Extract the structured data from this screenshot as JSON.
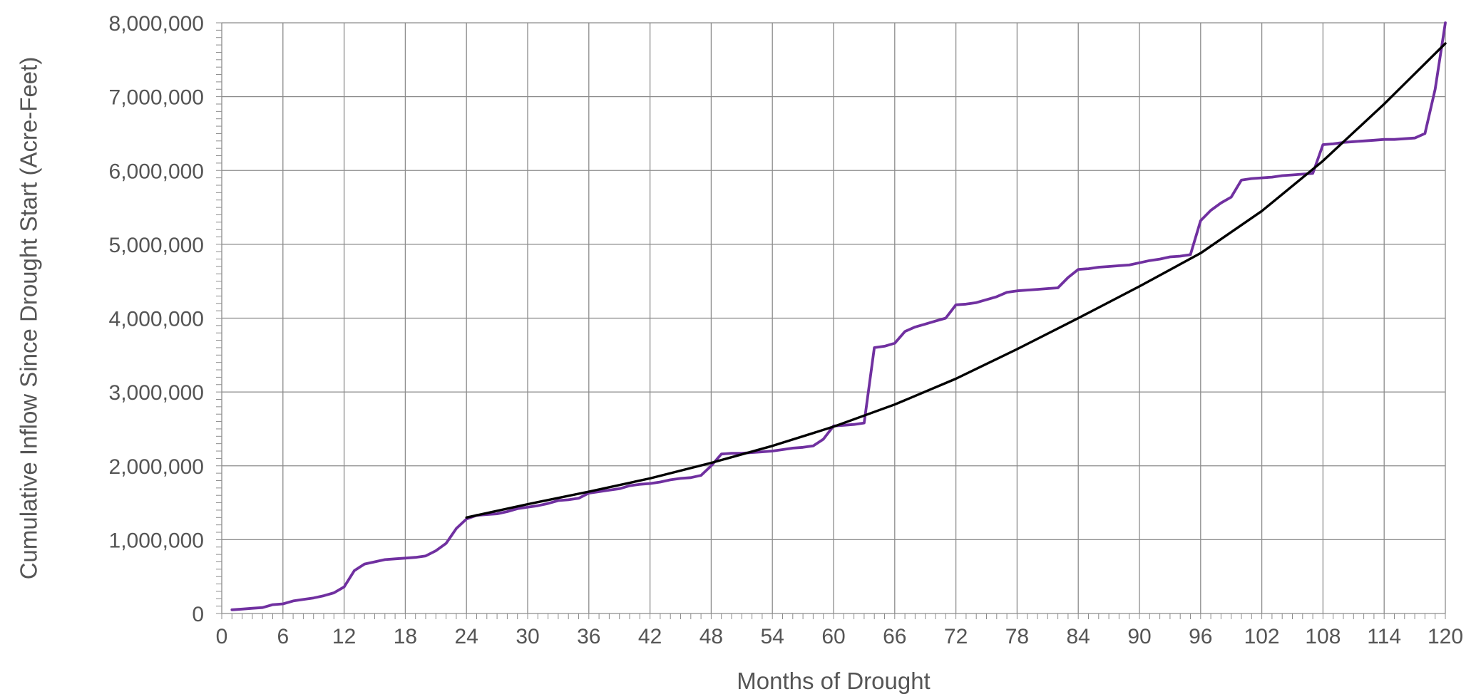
{
  "chart_data": {
    "type": "line",
    "xlabel": "Months of Drought",
    "ylabel": "Cumulative Inflow Since Drought Start (Acre-Feet)",
    "xlim": [
      0,
      120
    ],
    "ylim": [
      0,
      8000000
    ],
    "x_ticks": [
      0,
      6,
      12,
      18,
      24,
      30,
      36,
      42,
      48,
      54,
      60,
      66,
      72,
      78,
      84,
      90,
      96,
      102,
      108,
      114,
      120
    ],
    "y_ticks": [
      0,
      1000000,
      2000000,
      3000000,
      4000000,
      5000000,
      6000000,
      7000000,
      8000000
    ],
    "y_tick_labels": [
      "0",
      "1,000,000",
      "2,000,000",
      "3,000,000",
      "4,000,000",
      "5,000,000",
      "6,000,000",
      "7,000,000",
      "8,000,000"
    ],
    "grid": true,
    "series": [
      {
        "color": "#7030a0",
        "points": [
          [
            1,
            50000
          ],
          [
            2,
            60000
          ],
          [
            3,
            70000
          ],
          [
            4,
            80000
          ],
          [
            5,
            120000
          ],
          [
            6,
            130000
          ],
          [
            7,
            170000
          ],
          [
            8,
            190000
          ],
          [
            9,
            210000
          ],
          [
            10,
            240000
          ],
          [
            11,
            280000
          ],
          [
            12,
            360000
          ],
          [
            13,
            580000
          ],
          [
            14,
            670000
          ],
          [
            15,
            700000
          ],
          [
            16,
            730000
          ],
          [
            17,
            740000
          ],
          [
            18,
            750000
          ],
          [
            19,
            760000
          ],
          [
            20,
            780000
          ],
          [
            21,
            850000
          ],
          [
            22,
            950000
          ],
          [
            23,
            1150000
          ],
          [
            24,
            1280000
          ],
          [
            25,
            1330000
          ],
          [
            26,
            1340000
          ],
          [
            27,
            1350000
          ],
          [
            28,
            1380000
          ],
          [
            29,
            1420000
          ],
          [
            30,
            1440000
          ],
          [
            31,
            1460000
          ],
          [
            32,
            1490000
          ],
          [
            33,
            1530000
          ],
          [
            34,
            1540000
          ],
          [
            35,
            1560000
          ],
          [
            36,
            1630000
          ],
          [
            37,
            1650000
          ],
          [
            38,
            1670000
          ],
          [
            39,
            1690000
          ],
          [
            40,
            1730000
          ],
          [
            41,
            1750000
          ],
          [
            42,
            1760000
          ],
          [
            43,
            1780000
          ],
          [
            44,
            1810000
          ],
          [
            45,
            1830000
          ],
          [
            46,
            1840000
          ],
          [
            47,
            1870000
          ],
          [
            48,
            2000000
          ],
          [
            49,
            2160000
          ],
          [
            50,
            2170000
          ],
          [
            51,
            2170000
          ],
          [
            52,
            2180000
          ],
          [
            53,
            2190000
          ],
          [
            54,
            2200000
          ],
          [
            55,
            2220000
          ],
          [
            56,
            2240000
          ],
          [
            57,
            2250000
          ],
          [
            58,
            2270000
          ],
          [
            59,
            2360000
          ],
          [
            60,
            2540000
          ],
          [
            61,
            2550000
          ],
          [
            62,
            2560000
          ],
          [
            63,
            2580000
          ],
          [
            64,
            3600000
          ],
          [
            65,
            3620000
          ],
          [
            66,
            3660000
          ],
          [
            67,
            3820000
          ],
          [
            68,
            3880000
          ],
          [
            69,
            3920000
          ],
          [
            70,
            3960000
          ],
          [
            71,
            4000000
          ],
          [
            72,
            4180000
          ],
          [
            73,
            4190000
          ],
          [
            74,
            4210000
          ],
          [
            75,
            4250000
          ],
          [
            76,
            4290000
          ],
          [
            77,
            4350000
          ],
          [
            78,
            4370000
          ],
          [
            79,
            4380000
          ],
          [
            80,
            4390000
          ],
          [
            81,
            4400000
          ],
          [
            82,
            4410000
          ],
          [
            83,
            4550000
          ],
          [
            84,
            4660000
          ],
          [
            85,
            4670000
          ],
          [
            86,
            4690000
          ],
          [
            87,
            4700000
          ],
          [
            88,
            4710000
          ],
          [
            89,
            4720000
          ],
          [
            90,
            4750000
          ],
          [
            91,
            4780000
          ],
          [
            92,
            4800000
          ],
          [
            93,
            4830000
          ],
          [
            94,
            4840000
          ],
          [
            95,
            4860000
          ],
          [
            96,
            5320000
          ],
          [
            97,
            5460000
          ],
          [
            98,
            5560000
          ],
          [
            99,
            5640000
          ],
          [
            100,
            5870000
          ],
          [
            101,
            5890000
          ],
          [
            102,
            5900000
          ],
          [
            103,
            5910000
          ],
          [
            104,
            5930000
          ],
          [
            105,
            5940000
          ],
          [
            106,
            5950000
          ],
          [
            107,
            5960000
          ],
          [
            108,
            6350000
          ],
          [
            109,
            6360000
          ],
          [
            110,
            6380000
          ],
          [
            111,
            6390000
          ],
          [
            112,
            6400000
          ],
          [
            113,
            6410000
          ],
          [
            114,
            6420000
          ],
          [
            115,
            6420000
          ],
          [
            116,
            6430000
          ],
          [
            117,
            6440000
          ],
          [
            118,
            6500000
          ],
          [
            119,
            7100000
          ],
          [
            120,
            8000000
          ]
        ]
      },
      {
        "color": "#000000",
        "points": [
          [
            24,
            1300000
          ],
          [
            30,
            1480000
          ],
          [
            36,
            1650000
          ],
          [
            42,
            1830000
          ],
          [
            48,
            2040000
          ],
          [
            54,
            2270000
          ],
          [
            60,
            2530000
          ],
          [
            66,
            2830000
          ],
          [
            72,
            3180000
          ],
          [
            78,
            3580000
          ],
          [
            84,
            4000000
          ],
          [
            90,
            4430000
          ],
          [
            96,
            4880000
          ],
          [
            102,
            5450000
          ],
          [
            108,
            6130000
          ],
          [
            114,
            6900000
          ],
          [
            120,
            7720000
          ]
        ]
      }
    ]
  }
}
